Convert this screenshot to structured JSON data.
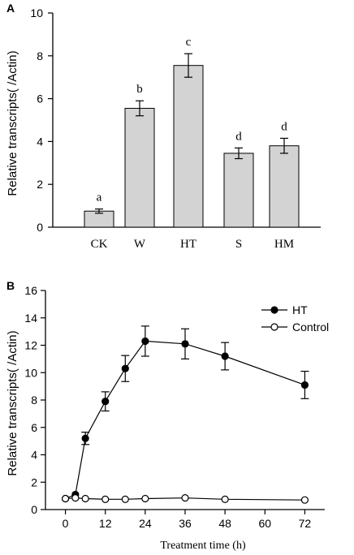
{
  "chart_data": [
    {
      "type": "bar",
      "panel_label": "A",
      "categories": [
        "CK",
        "W",
        "HT",
        "S",
        "HM"
      ],
      "values": [
        0.75,
        5.55,
        7.55,
        3.45,
        3.8
      ],
      "errors": [
        0.1,
        0.35,
        0.55,
        0.25,
        0.35
      ],
      "significance": [
        "a",
        "b",
        "c",
        "d",
        "d"
      ],
      "ylabel": "Relative transcripts( /Actin)",
      "xlabel": "",
      "ylim": [
        0,
        10
      ],
      "yticks": [
        0,
        2,
        4,
        6,
        8,
        10
      ],
      "bar_color": "#d3d3d3"
    },
    {
      "type": "line",
      "panel_label": "B",
      "xlabel": "Treatment time (h)",
      "ylabel": "Relative transcripts( /Actin)",
      "xlim": [
        -6,
        78
      ],
      "ylim": [
        0,
        16
      ],
      "xticks": [
        0,
        12,
        24,
        36,
        48,
        60,
        72
      ],
      "yticks": [
        0,
        2,
        4,
        6,
        8,
        10,
        12,
        14,
        16
      ],
      "legend_position": "top-right",
      "series": [
        {
          "name": "HT",
          "marker": "filled-circle",
          "x": [
            0,
            3,
            6,
            12,
            18,
            24,
            36,
            48,
            72
          ],
          "y": [
            0.8,
            1.1,
            5.2,
            7.9,
            10.3,
            12.3,
            12.1,
            11.2,
            9.1
          ],
          "errors": [
            0.05,
            0.1,
            0.45,
            0.7,
            0.95,
            1.1,
            1.1,
            1.0,
            1.0
          ]
        },
        {
          "name": "Control",
          "marker": "open-circle",
          "x": [
            0,
            3,
            6,
            12,
            18,
            24,
            36,
            48,
            72
          ],
          "y": [
            0.8,
            0.85,
            0.8,
            0.75,
            0.75,
            0.8,
            0.85,
            0.75,
            0.7
          ],
          "errors": [
            0,
            0,
            0,
            0,
            0,
            0,
            0,
            0,
            0
          ]
        }
      ]
    }
  ]
}
